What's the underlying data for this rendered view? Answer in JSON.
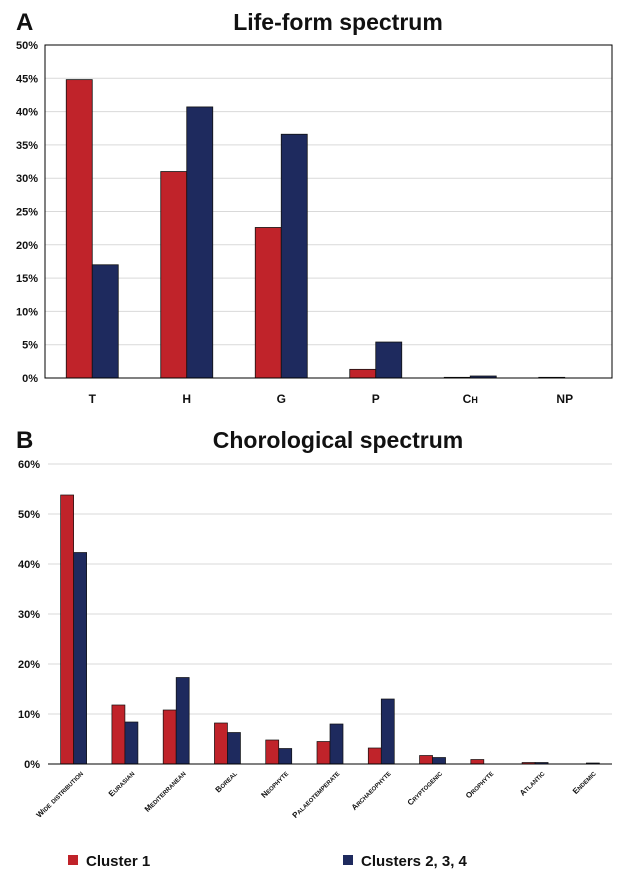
{
  "panels": [
    {
      "letter": "A",
      "chart_data": {
        "type": "bar",
        "title": "Life-form spectrum",
        "categories": [
          "T",
          "H",
          "G",
          "P",
          "CH",
          "NP"
        ],
        "category_labels": [
          {
            "main": "T",
            "sub": ""
          },
          {
            "main": "H",
            "sub": ""
          },
          {
            "main": "G",
            "sub": ""
          },
          {
            "main": "P",
            "sub": ""
          },
          {
            "main": "C",
            "sub": "H"
          },
          {
            "main": "NP",
            "sub": ""
          }
        ],
        "series": [
          {
            "name": "Cluster 1",
            "values": [
              44.8,
              31.0,
              22.6,
              1.3,
              0.1,
              0.1
            ]
          },
          {
            "name": "Clusters 2, 3, 4",
            "values": [
              17.0,
              40.7,
              36.6,
              5.4,
              0.3,
              0.0
            ]
          }
        ],
        "ylim": [
          0,
          50
        ],
        "yticks": [
          "0%",
          "5%",
          "10%",
          "15%",
          "20%",
          "25%",
          "30%",
          "35%",
          "40%",
          "45%",
          "50%"
        ],
        "grid": true,
        "xlabel": "",
        "ylabel": ""
      }
    },
    {
      "letter": "B",
      "chart_data": {
        "type": "bar",
        "title": "Chorological spectrum",
        "categories": [
          "Wide distribution",
          "Eurasian",
          "Mediterranean",
          "Boreal",
          "Neophyte",
          "Palaeotemperate",
          "Archaeophyte",
          "Cryptogenic",
          "Orophyte",
          "Atlantic",
          "Endemic"
        ],
        "series": [
          {
            "name": "Cluster 1",
            "values": [
              53.8,
              11.8,
              10.8,
              8.2,
              4.8,
              4.5,
              3.2,
              1.7,
              0.9,
              0.3,
              0.0
            ]
          },
          {
            "name": "Clusters 2, 3, 4",
            "values": [
              42.3,
              8.4,
              17.3,
              6.3,
              3.1,
              8.0,
              13.0,
              1.3,
              0.0,
              0.3,
              0.2
            ]
          }
        ],
        "ylim": [
          0,
          60
        ],
        "yticks": [
          "0%",
          "10%",
          "20%",
          "30%",
          "40%",
          "50%",
          "60%"
        ],
        "grid": true,
        "xlabel": "",
        "ylabel": ""
      }
    }
  ],
  "legend": [
    {
      "label": "Cluster 1",
      "color": "#C0232A"
    },
    {
      "label": "Clusters 2, 3, 4",
      "color": "#1E2A5E"
    }
  ],
  "colors": {
    "series1": "#C0232A",
    "series2": "#1E2A5E",
    "grid": "#D9D9D9",
    "axis": "#000000"
  }
}
